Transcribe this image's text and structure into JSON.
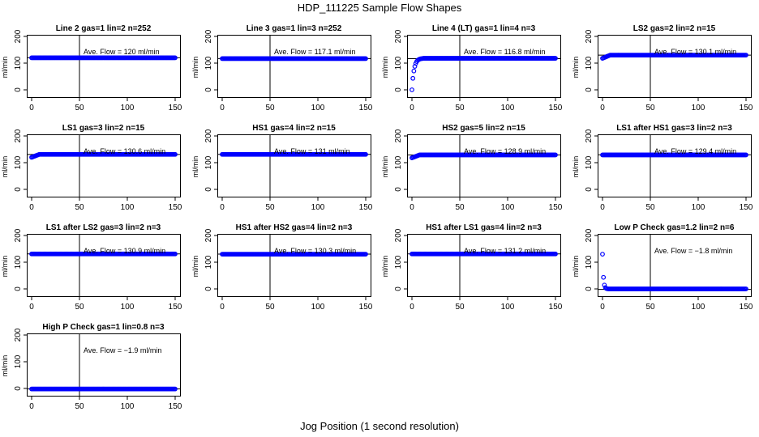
{
  "figure": {
    "title": "HDP_111225  Sample Flow Shapes",
    "xlabel": "Jog Position (1 second resolution)"
  },
  "chart_data": [
    {
      "type": "scatter",
      "title": "Line 2 gas=1 lin=2 n=252",
      "ylabel": "ml/min",
      "annotation": "Ave. Flow =  120  ml/min",
      "mean": 120,
      "xlim": [
        0,
        150
      ],
      "ylim": [
        0,
        200
      ],
      "xticks": [
        0,
        50,
        100,
        150
      ],
      "yticks": [
        0,
        100,
        200
      ],
      "vline_x": 50,
      "shape": "flat",
      "start": 120,
      "level": 120,
      "color": "#0000ff"
    },
    {
      "type": "scatter",
      "title": "Line 3 gas=1 lin=3 n=252",
      "ylabel": "ml/min",
      "annotation": "Ave. Flow =  117.1  ml/min",
      "mean": 117.1,
      "xlim": [
        0,
        150
      ],
      "ylim": [
        0,
        200
      ],
      "xticks": [
        0,
        50,
        100,
        150
      ],
      "yticks": [
        0,
        100,
        200
      ],
      "vline_x": 50,
      "shape": "flat",
      "start": 117,
      "level": 117,
      "color": "#0000ff"
    },
    {
      "type": "scatter",
      "title": "Line 4 (LT) gas=1 lin=4 n=3",
      "ylabel": "ml/min",
      "annotation": "Ave. Flow =  116.8  ml/min",
      "mean": 116.8,
      "xlim": [
        0,
        150
      ],
      "ylim": [
        0,
        200
      ],
      "xticks": [
        0,
        50,
        100,
        150
      ],
      "yticks": [
        0,
        100,
        200
      ],
      "vline_x": 50,
      "shape": "rise",
      "start": 0,
      "level": 118,
      "color": "#0000ff"
    },
    {
      "type": "scatter",
      "title": "LS2 gas=2 lin=2 n=15",
      "ylabel": "ml/min",
      "annotation": "Ave. Flow =  130.1  ml/min",
      "mean": 130.1,
      "xlim": [
        0,
        150
      ],
      "ylim": [
        0,
        200
      ],
      "xticks": [
        0,
        50,
        100,
        150
      ],
      "yticks": [
        0,
        100,
        200
      ],
      "vline_x": 50,
      "shape": "small-rise",
      "start": 118,
      "level": 130,
      "color": "#0000ff"
    },
    {
      "type": "scatter",
      "title": "LS1 gas=3 lin=2 n=15",
      "ylabel": "ml/min",
      "annotation": "Ave. Flow =  130.6  ml/min",
      "mean": 130.6,
      "xlim": [
        0,
        150
      ],
      "ylim": [
        0,
        200
      ],
      "xticks": [
        0,
        50,
        100,
        150
      ],
      "yticks": [
        0,
        100,
        200
      ],
      "vline_x": 50,
      "shape": "small-rise",
      "start": 120,
      "level": 131,
      "color": "#0000ff"
    },
    {
      "type": "scatter",
      "title": "HS1 gas=4 lin=2 n=15",
      "ylabel": "ml/min",
      "annotation": "Ave. Flow =  131  ml/min",
      "mean": 131,
      "xlim": [
        0,
        150
      ],
      "ylim": [
        0,
        200
      ],
      "xticks": [
        0,
        50,
        100,
        150
      ],
      "yticks": [
        0,
        100,
        200
      ],
      "vline_x": 50,
      "shape": "flat",
      "start": 131,
      "level": 131,
      "color": "#0000ff"
    },
    {
      "type": "scatter",
      "title": "HS2 gas=5 lin=2 n=15",
      "ylabel": "ml/min",
      "annotation": "Ave. Flow =  128.9  ml/min",
      "mean": 128.9,
      "xlim": [
        0,
        150
      ],
      "ylim": [
        0,
        200
      ],
      "xticks": [
        0,
        50,
        100,
        150
      ],
      "yticks": [
        0,
        100,
        200
      ],
      "vline_x": 50,
      "shape": "small-rise",
      "start": 118,
      "level": 129,
      "color": "#0000ff"
    },
    {
      "type": "scatter",
      "title": "LS1 after HS1 gas=3 lin=2 n=3",
      "ylabel": "ml/min",
      "annotation": "Ave. Flow =  129.4  ml/min",
      "mean": 129.4,
      "xlim": [
        0,
        150
      ],
      "ylim": [
        0,
        200
      ],
      "xticks": [
        0,
        50,
        100,
        150
      ],
      "yticks": [
        0,
        100,
        200
      ],
      "vline_x": 50,
      "shape": "flat",
      "start": 129,
      "level": 129,
      "color": "#0000ff"
    },
    {
      "type": "scatter",
      "title": "LS1 after LS2 gas=3 lin=2 n=3",
      "ylabel": "ml/min",
      "annotation": "Ave. Flow =  130.9  ml/min",
      "mean": 130.9,
      "xlim": [
        0,
        150
      ],
      "ylim": [
        0,
        200
      ],
      "xticks": [
        0,
        50,
        100,
        150
      ],
      "yticks": [
        0,
        100,
        200
      ],
      "vline_x": 50,
      "shape": "flat",
      "start": 131,
      "level": 131,
      "color": "#0000ff"
    },
    {
      "type": "scatter",
      "title": "HS1 after HS2 gas=4 lin=2 n=3",
      "ylabel": "ml/min",
      "annotation": "Ave. Flow =  130.3  ml/min",
      "mean": 130.3,
      "xlim": [
        0,
        150
      ],
      "ylim": [
        0,
        200
      ],
      "xticks": [
        0,
        50,
        100,
        150
      ],
      "yticks": [
        0,
        100,
        200
      ],
      "vline_x": 50,
      "shape": "flat",
      "start": 130,
      "level": 130,
      "color": "#0000ff"
    },
    {
      "type": "scatter",
      "title": "HS1 after LS1 gas=4 lin=2 n=3",
      "ylabel": "ml/min",
      "annotation": "Ave. Flow =  131.2  ml/min",
      "mean": 131.2,
      "xlim": [
        0,
        150
      ],
      "ylim": [
        0,
        200
      ],
      "xticks": [
        0,
        50,
        100,
        150
      ],
      "yticks": [
        0,
        100,
        200
      ],
      "vline_x": 50,
      "shape": "flat",
      "start": 131,
      "level": 131,
      "color": "#0000ff"
    },
    {
      "type": "scatter",
      "title": "Low P Check gas=1.2 lin=2 n=6",
      "ylabel": "ml/min",
      "annotation": "Ave. Flow =  −1.8  ml/min",
      "mean": -1.8,
      "xlim": [
        0,
        150
      ],
      "ylim": [
        0,
        200
      ],
      "xticks": [
        0,
        50,
        100,
        150
      ],
      "yticks": [
        0,
        100,
        200
      ],
      "vline_x": 50,
      "shape": "decay",
      "start": 130,
      "level": 0,
      "color": "#0000ff"
    },
    {
      "type": "scatter",
      "title": "High P Check gas=1 lin=0.8 n=3",
      "ylabel": "ml/min",
      "annotation": "Ave. Flow =  −1.9  ml/min",
      "mean": -1.9,
      "xlim": [
        0,
        150
      ],
      "ylim": [
        0,
        200
      ],
      "xticks": [
        0,
        50,
        100,
        150
      ],
      "yticks": [
        0,
        100,
        200
      ],
      "vline_x": 50,
      "shape": "flat",
      "start": -2,
      "level": -2,
      "color": "#0000ff"
    }
  ]
}
